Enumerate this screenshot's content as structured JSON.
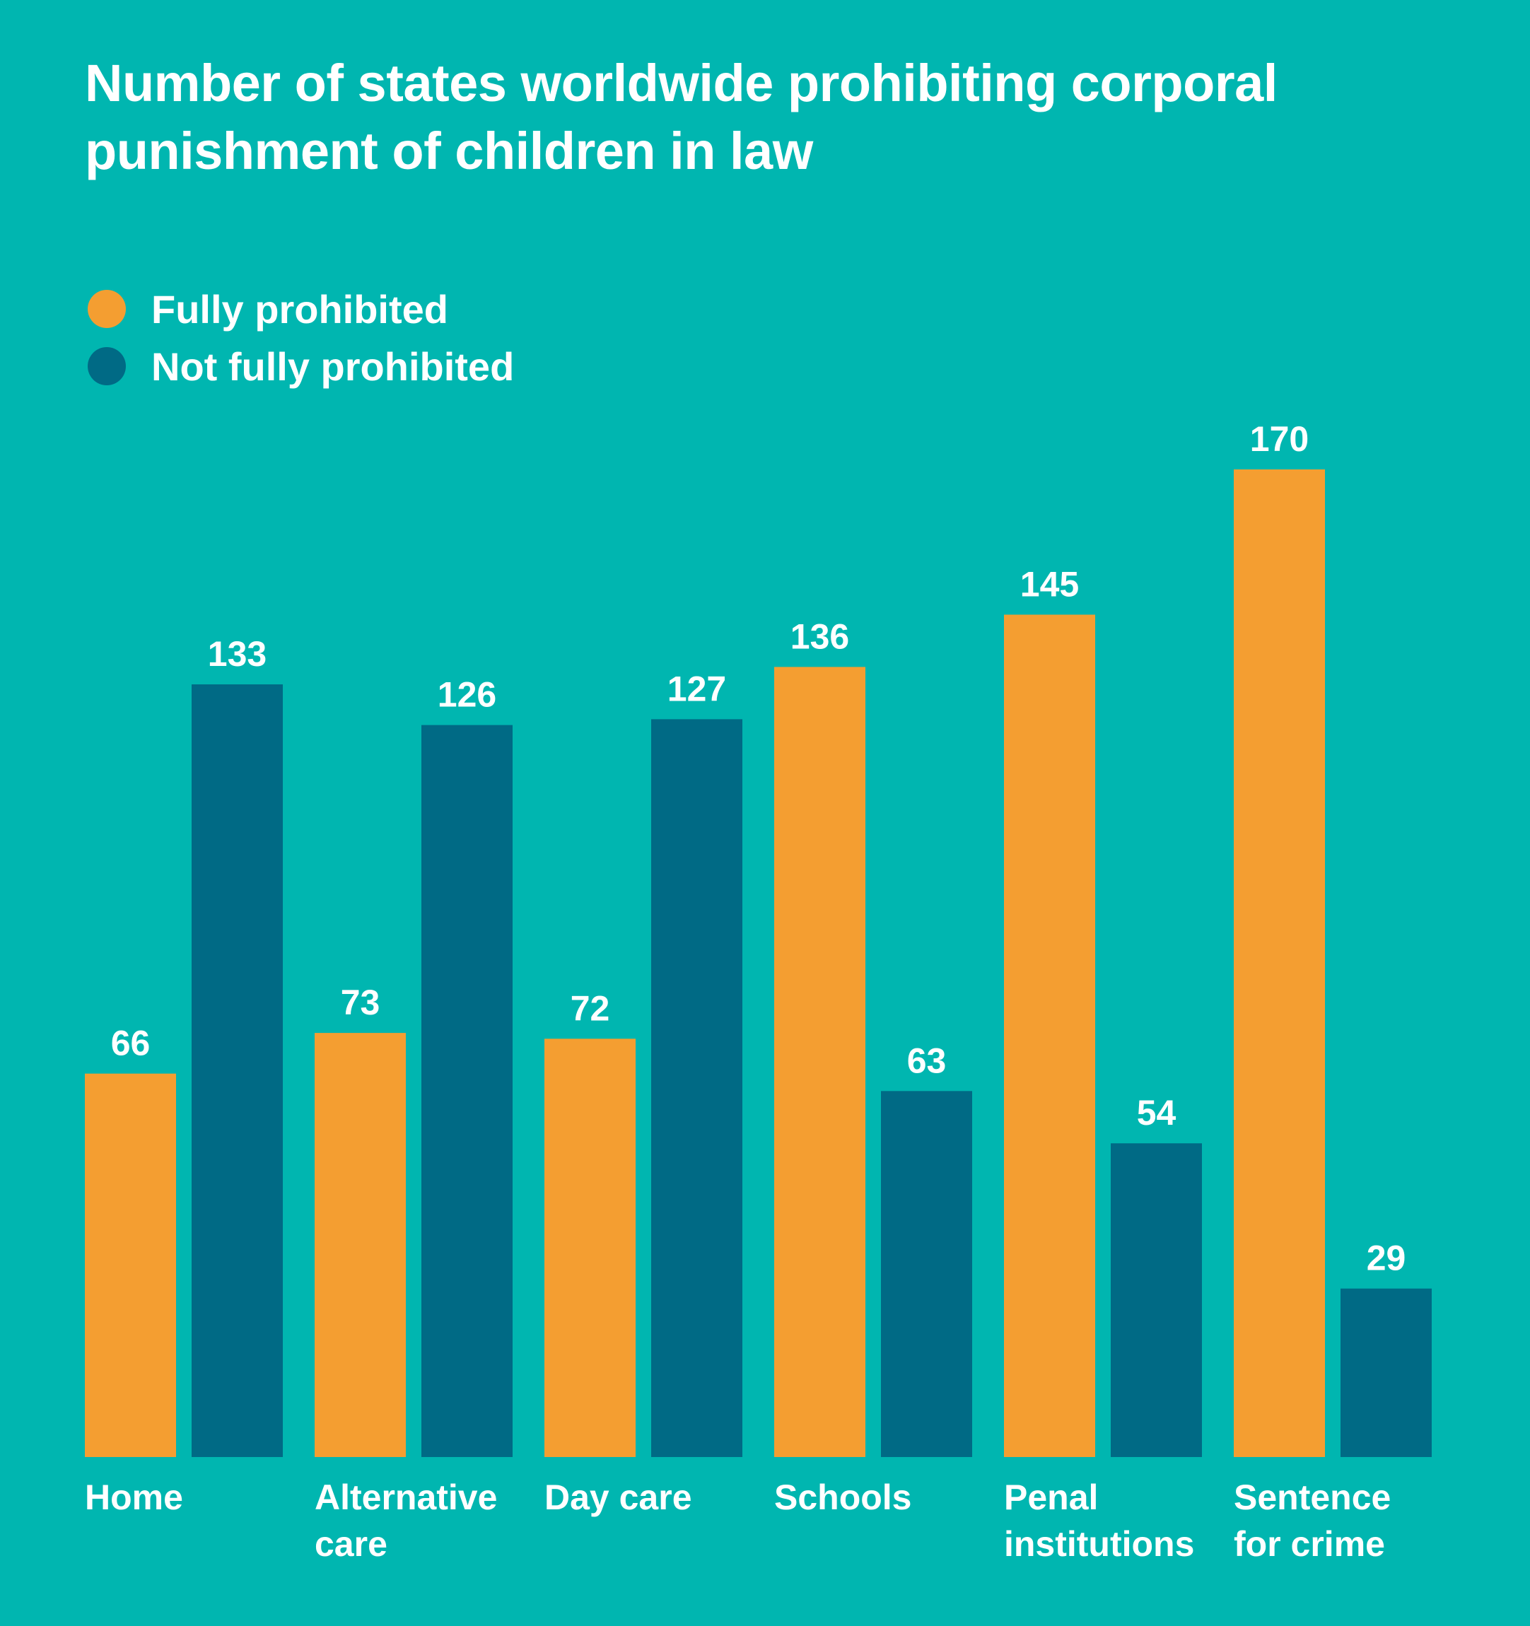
{
  "chart_data": {
    "type": "bar",
    "title": "Number of states worldwide prohibiting corporal punishment of children in law",
    "categories": [
      "Home",
      "Alternative\ncare",
      "Day care",
      "Schools",
      "Penal\ninstitutions",
      "Sentence\nfor crime"
    ],
    "series": [
      {
        "name": "Fully prohibited",
        "color": "#f49e31",
        "values": [
          66,
          73,
          72,
          136,
          145,
          170
        ]
      },
      {
        "name": "Not fully prohibited",
        "color": "#006a85",
        "values": [
          133,
          126,
          127,
          63,
          54,
          29
        ]
      }
    ],
    "legend": "top-left",
    "grid": false,
    "y_axis_shown": false,
    "data_labels": true,
    "background": "#00b6b0"
  }
}
